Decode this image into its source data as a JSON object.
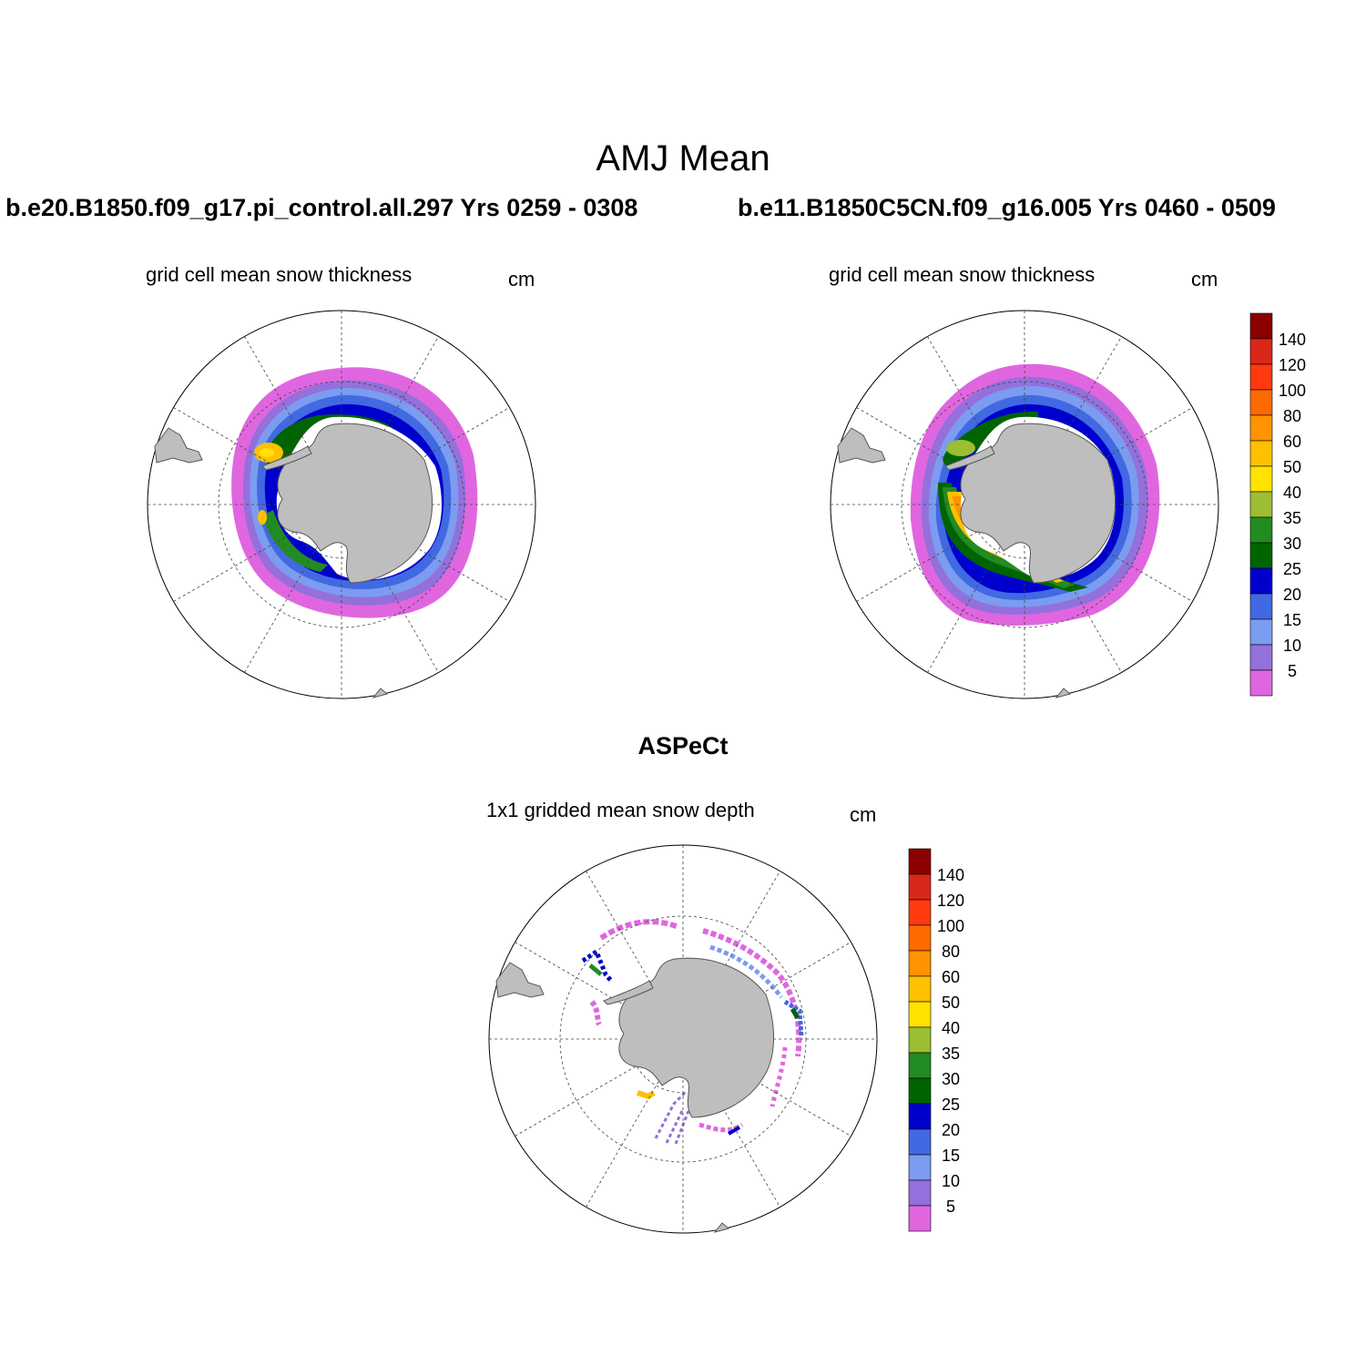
{
  "figure": {
    "title": "AMJ Mean",
    "case1_title": "b.e20.B1850.f09_g17.pi_control.all.297  Yrs 0259 - 0308",
    "case2_title": "b.e11.B1850C5CN.f09_g16.005  Yrs 0460 - 0509",
    "obs_title": "ASPeCt"
  },
  "panels": [
    {
      "subtitle": "grid cell mean snow thickness",
      "units": "cm"
    },
    {
      "subtitle": "grid cell mean snow thickness",
      "units": "cm"
    },
    {
      "subtitle": "1x1 gridded mean snow depth",
      "units": "cm"
    }
  ],
  "colorbar": {
    "labels": [
      "140",
      "120",
      "100",
      "80",
      "60",
      "50",
      "40",
      "35",
      "30",
      "25",
      "20",
      "15",
      "10",
      "5"
    ],
    "colors": [
      "#8b0000",
      "#d9281a",
      "#ff3a0e",
      "#ff6a00",
      "#ff9300",
      "#ffc000",
      "#ffe200",
      "#9cbe32",
      "#228b22",
      "#006400",
      "#0000cd",
      "#4169e1",
      "#7b9cf0",
      "#9370db",
      "#e066e0"
    ]
  },
  "map_colors": {
    "land": "#bebebe",
    "coast": "#555555",
    "grid": "#444444"
  }
}
